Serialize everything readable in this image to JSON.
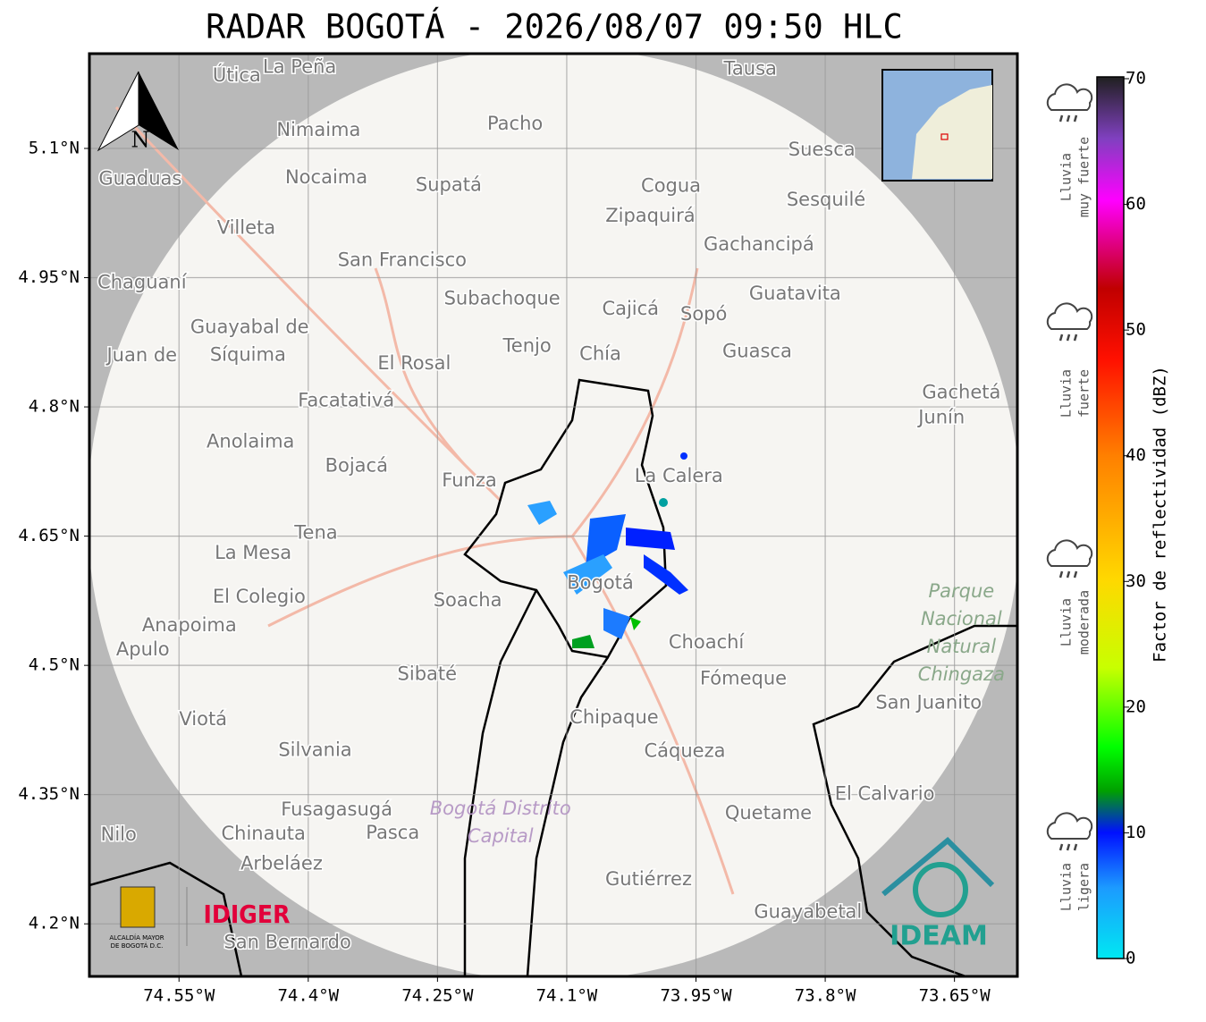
{
  "title": "RADAR BOGOTÁ - 2026/08/07 09:50 HLC",
  "north": "N",
  "map": {
    "xlim": [
      -74.654,
      -73.577
    ],
    "ylim": [
      4.139,
      5.21
    ],
    "xticks": [
      {
        "value": -74.55,
        "label": "74.55°W"
      },
      {
        "value": -74.4,
        "label": "74.4°W"
      },
      {
        "value": -74.25,
        "label": "74.25°W"
      },
      {
        "value": -74.1,
        "label": "74.1°W"
      },
      {
        "value": -73.95,
        "label": "73.95°W"
      },
      {
        "value": -73.8,
        "label": "73.8°W"
      },
      {
        "value": -73.65,
        "label": "73.65°W"
      }
    ],
    "yticks": [
      {
        "value": 5.1,
        "label": "5.1°N"
      },
      {
        "value": 4.95,
        "label": "4.95°N"
      },
      {
        "value": 4.8,
        "label": "4.8°N"
      },
      {
        "value": 4.65,
        "label": "4.65°N"
      },
      {
        "value": 4.5,
        "label": "4.5°N"
      },
      {
        "value": 4.35,
        "label": "4.35°N"
      },
      {
        "value": 4.2,
        "label": "4.2°N"
      }
    ],
    "grid": true
  },
  "colorbar": {
    "label": "Factor de reflectividad (dBZ)",
    "lim": [
      0,
      70
    ],
    "ticks": [
      0,
      10,
      20,
      30,
      40,
      50,
      60,
      70
    ]
  },
  "rain_levels": [
    [
      "Lluvia",
      "muy fuerte"
    ],
    [
      "Lluvia",
      "fuerte"
    ],
    [
      "Lluvia",
      "moderada"
    ],
    [
      "Lluvia",
      "ligera"
    ]
  ],
  "places": [
    {
      "name": "Útica",
      "lon": -74.483,
      "lat": 5.184
    },
    {
      "name": "La Peña",
      "lon": -74.41,
      "lat": 5.194
    },
    {
      "name": "Tausa",
      "lon": -73.887,
      "lat": 5.192
    },
    {
      "name": "Pacho",
      "lon": -74.16,
      "lat": 5.128
    },
    {
      "name": "Nimaima",
      "lon": -74.388,
      "lat": 5.121
    },
    {
      "name": "Guaduas",
      "lon": -74.595,
      "lat": 5.064
    },
    {
      "name": "Nocaima",
      "lon": -74.379,
      "lat": 5.066
    },
    {
      "name": "Supatá",
      "lon": -74.237,
      "lat": 5.057
    },
    {
      "name": "Cogua",
      "lon": -73.979,
      "lat": 5.056
    },
    {
      "name": "Suesca",
      "lon": -73.804,
      "lat": 5.098
    },
    {
      "name": "Zipaquirá",
      "lon": -74.003,
      "lat": 5.021
    },
    {
      "name": "Sesquilé",
      "lon": -73.799,
      "lat": 5.04
    },
    {
      "name": "Villeta",
      "lon": -74.472,
      "lat": 5.007
    },
    {
      "name": "Gachancipá",
      "lon": -73.877,
      "lat": 4.988
    },
    {
      "name": "San Francisco",
      "lon": -74.291,
      "lat": 4.97
    },
    {
      "name": "Chaguaní",
      "lon": -74.593,
      "lat": 4.944
    },
    {
      "name": "Subachoque",
      "lon": -74.175,
      "lat": 4.925
    },
    {
      "name": "Cajicá",
      "lon": -74.026,
      "lat": 4.913
    },
    {
      "name": "Sopó",
      "lon": -73.941,
      "lat": 4.907
    },
    {
      "name": "Guatavita",
      "lon": -73.835,
      "lat": 4.931
    },
    {
      "name": "Guayabal de",
      "lon": -74.468,
      "lat": 4.892
    },
    {
      "name": "Síquima",
      "lon": -74.47,
      "lat": 4.86
    },
    {
      "name": "Juan de",
      "lon": -74.593,
      "lat": 4.859
    },
    {
      "name": "Tenjo",
      "lon": -74.146,
      "lat": 4.87
    },
    {
      "name": "Chía",
      "lon": -74.061,
      "lat": 4.861
    },
    {
      "name": "Guasca",
      "lon": -73.879,
      "lat": 4.864
    },
    {
      "name": "El Rosal",
      "lon": -74.277,
      "lat": 4.85
    },
    {
      "name": "Facatativá",
      "lon": -74.356,
      "lat": 4.807
    },
    {
      "name": "Gachetá",
      "lon": -73.642,
      "lat": 4.816
    },
    {
      "name": "Junín",
      "lon": -73.665,
      "lat": 4.787
    },
    {
      "name": "Anolaima",
      "lon": -74.467,
      "lat": 4.759
    },
    {
      "name": "Bojacá",
      "lon": -74.344,
      "lat": 4.731
    },
    {
      "name": "Funza",
      "lon": -74.213,
      "lat": 4.714
    },
    {
      "name": "La Calera",
      "lon": -73.97,
      "lat": 4.719
    },
    {
      "name": "Tena",
      "lon": -74.391,
      "lat": 4.653
    },
    {
      "name": "La Mesa",
      "lon": -74.464,
      "lat": 4.63
    },
    {
      "name": "Bogotá",
      "lon": -74.061,
      "lat": 4.595
    },
    {
      "name": "El Colegio",
      "lon": -74.457,
      "lat": 4.579
    },
    {
      "name": "Soacha",
      "lon": -74.215,
      "lat": 4.575
    },
    {
      "name": "Anapoima",
      "lon": -74.538,
      "lat": 4.546
    },
    {
      "name": "Apulo",
      "lon": -74.592,
      "lat": 4.518
    },
    {
      "name": "Choachí",
      "lon": -73.938,
      "lat": 4.526
    },
    {
      "name": "Sibaté",
      "lon": -74.262,
      "lat": 4.489
    },
    {
      "name": "Fómeque",
      "lon": -73.895,
      "lat": 4.484
    },
    {
      "name": "San Juanito",
      "lon": -73.68,
      "lat": 4.456
    },
    {
      "name": "Chipaque",
      "lon": -74.045,
      "lat": 4.439
    },
    {
      "name": "Viotá",
      "lon": -74.522,
      "lat": 4.437
    },
    {
      "name": "Cáqueza",
      "lon": -73.963,
      "lat": 4.4
    },
    {
      "name": "Silvania",
      "lon": -74.392,
      "lat": 4.401
    },
    {
      "name": "El Calvario",
      "lon": -73.731,
      "lat": 4.35
    },
    {
      "name": "Fusagasugá",
      "lon": -74.367,
      "lat": 4.332
    },
    {
      "name": "Quetame",
      "lon": -73.866,
      "lat": 4.328
    },
    {
      "name": "Chinauta",
      "lon": -74.452,
      "lat": 4.304
    },
    {
      "name": "Pasca",
      "lon": -74.302,
      "lat": 4.305
    },
    {
      "name": "Nilo",
      "lon": -74.62,
      "lat": 4.303
    },
    {
      "name": "Arbeláez",
      "lon": -74.431,
      "lat": 4.269
    },
    {
      "name": "Gutiérrez",
      "lon": -74.005,
      "lat": 4.251
    },
    {
      "name": "Guayabetal",
      "lon": -73.82,
      "lat": 4.213
    },
    {
      "name": "San Bernardo",
      "lon": -74.424,
      "lat": 4.178
    }
  ],
  "areas": [
    {
      "lines": [
        "Parque",
        "Nacional",
        "Natural",
        "Chingaza"
      ],
      "lon": -73.642,
      "lat": 4.585
    },
    {
      "lines": [
        "Bogotá Distrito",
        "Capital"
      ],
      "lon": -74.177,
      "lat": 4.333
    }
  ],
  "logos": {
    "alcaldia": [
      "ALCALDÍA MAYOR",
      "DE BOGOTÁ D.C."
    ],
    "idiger": "IDIGER",
    "ideam": "IDEAM"
  }
}
